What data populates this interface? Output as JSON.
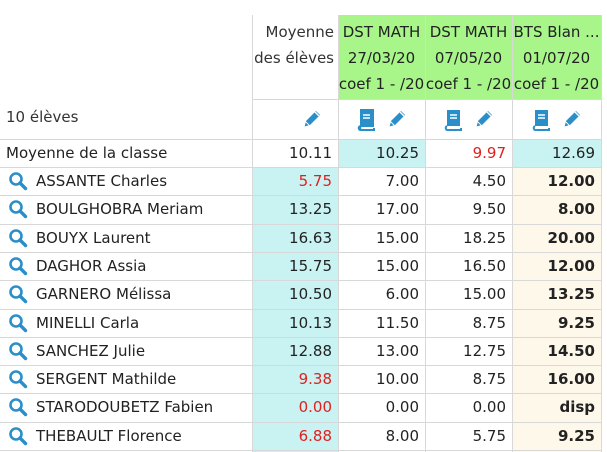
{
  "header": {
    "average_label_line1": "Moyenne",
    "average_label_line2": "des élèves",
    "students_count": "10 élèves",
    "class_average_label": "Moyenne de la classe"
  },
  "exams": [
    {
      "line1": "DST MATH",
      "line2": "27/03/20",
      "line3": "coef 1 - /20",
      "has_book": true
    },
    {
      "line1": "DST MATH",
      "line2": "07/05/20",
      "line3": "coef 1 - /20",
      "has_book": true
    },
    {
      "line1": "BTS Blan ...",
      "line2": "01/07/20",
      "line3": "coef 1 - /20",
      "has_book": true
    }
  ],
  "class_averages": {
    "avg": "10.11",
    "e0": "10.25",
    "e1": "9.97",
    "e2": "12.69"
  },
  "students": [
    {
      "name": "ASSANTE Charles",
      "avg": "5.75",
      "avg_red": true,
      "e0": "7.00",
      "e1": "4.50",
      "e2": "12.00"
    },
    {
      "name": "BOULGHOBRA Meriam",
      "avg": "13.25",
      "avg_red": false,
      "e0": "17.00",
      "e1": "9.50",
      "e2": "8.00"
    },
    {
      "name": "BOUYX Laurent",
      "avg": "16.63",
      "avg_red": false,
      "e0": "15.00",
      "e1": "18.25",
      "e2": "20.00"
    },
    {
      "name": "DAGHOR Assia",
      "avg": "15.75",
      "avg_red": false,
      "e0": "15.00",
      "e1": "16.50",
      "e2": "12.00"
    },
    {
      "name": "GARNERO Mélissa",
      "avg": "10.50",
      "avg_red": false,
      "e0": "6.00",
      "e1": "15.00",
      "e2": "13.25"
    },
    {
      "name": "MINELLI Carla",
      "avg": "10.13",
      "avg_red": false,
      "e0": "11.50",
      "e1": "8.75",
      "e2": "9.25"
    },
    {
      "name": "SANCHEZ Julie",
      "avg": "12.88",
      "avg_red": false,
      "e0": "13.00",
      "e1": "12.75",
      "e2": "14.50"
    },
    {
      "name": "SERGENT Mathilde",
      "avg": "9.38",
      "avg_red": true,
      "e0": "10.00",
      "e1": "8.75",
      "e2": "16.00"
    },
    {
      "name": "STARODOUBETZ Fabien",
      "avg": "0.00",
      "avg_red": true,
      "e0": "0.00",
      "e1": "0.00",
      "e2": "disp"
    },
    {
      "name": "THEBAULT Florence",
      "avg": "6.88",
      "avg_red": true,
      "e0": "8.00",
      "e1": "5.75",
      "e2": "9.25"
    }
  ],
  "colors": {
    "exam_header_bg": "#a8f58a",
    "average_column_bg": "#c9f3f3",
    "last_column_bg": "#fdf8e9",
    "icon_blue": "#2a8fc9",
    "low_grade_red": "#e0201e"
  },
  "icons": [
    "pencil-icon",
    "book-icon",
    "search-icon"
  ]
}
